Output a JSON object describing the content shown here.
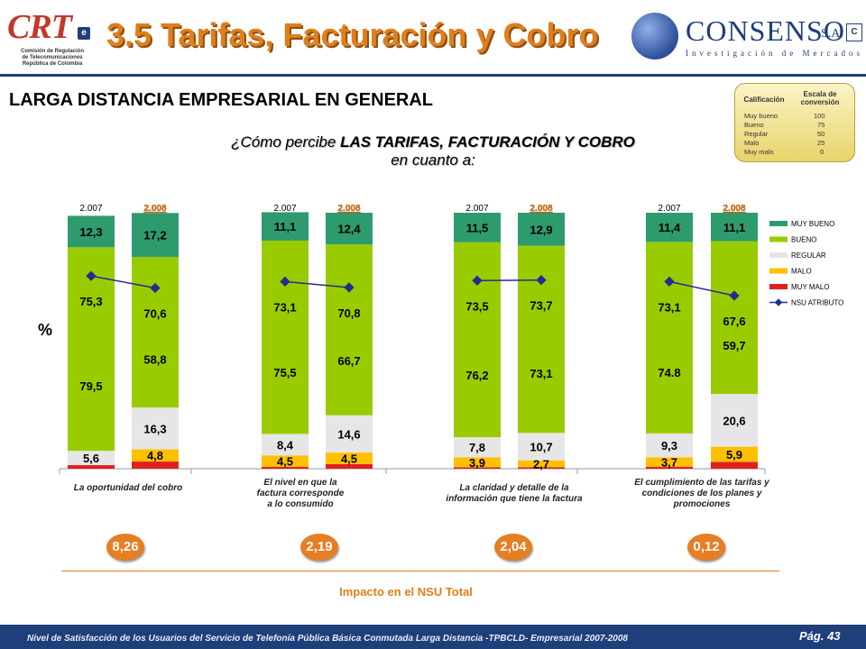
{
  "header": {
    "title": "3.5 Tarifas, Facturación y Cobro",
    "crt_logo": {
      "word": "CRT",
      "badge": "e",
      "lines": [
        "Comisión de Regulación",
        "de Telecomunicaciones",
        "República de Colombia"
      ]
    },
    "consenso_logo": {
      "name": "CONSENSO",
      "suffix": "S.A.",
      "tagline": "Investigación de Mercados",
      "mark": "C"
    }
  },
  "section_title": "LARGA DISTANCIA EMPRESARIAL EN GENERAL",
  "question": {
    "line1_prefix": "¿Cómo percibe ",
    "line1_bold": "LAS TARIFAS, FACTURACIÓN Y COBRO",
    "line2": "en cuanto a:"
  },
  "conversion_table": {
    "headers": [
      "Calificación",
      "Escala de conversión"
    ],
    "rows": [
      [
        "Muy bueno",
        "100"
      ],
      [
        "Bueno",
        "75"
      ],
      [
        "Regular",
        "50"
      ],
      [
        "Malo",
        "25"
      ],
      [
        "Muy malo",
        "0"
      ]
    ]
  },
  "percent_label": "%",
  "colors": {
    "muy_bueno": "#2e9b6e",
    "bueno": "#99cc00",
    "regular": "#e6e6e6",
    "malo": "#ffc000",
    "muy_malo": "#e02020",
    "nsu": "#1f2f8f",
    "accent": "#e07e1b"
  },
  "chart_data": {
    "type": "bar",
    "stacked": true,
    "ylim": [
      0,
      100
    ],
    "legend": {
      "position": "right",
      "labels": [
        "MUY BUENO",
        "BUENO",
        "REGULAR",
        "MALO",
        "MUY MALO",
        "NSU ATRIBUTO"
      ]
    },
    "groups": [
      {
        "category": "La oportunidad del cobro",
        "impact": "8,26",
        "bars": [
          {
            "year": "2.007",
            "muy_malo": 1.4,
            "malo": 0,
            "regular": 5.6,
            "bueno": 79.5,
            "muy_bueno": 12.3,
            "nsu": 75.3,
            "labels": {
              "muy_malo": "",
              "malo": "",
              "regular": "5,6",
              "bueno": "79,5",
              "muy_bueno": "12,3"
            }
          },
          {
            "year": "2.008",
            "muy_malo": 2.8,
            "malo": 4.8,
            "regular": 16.3,
            "bueno": 58.8,
            "muy_bueno": 17.2,
            "nsu": 70.6,
            "labels": {
              "muy_malo": "",
              "malo": "4,8",
              "regular": "16,3",
              "bueno": "58,8",
              "muy_bueno": "17,2"
            }
          }
        ]
      },
      {
        "category": "El nivel en que la factura corresponde a lo consumido",
        "impact": "2,19",
        "bars": [
          {
            "year": "2.007",
            "muy_malo": 0.7,
            "malo": 4.5,
            "regular": 8.4,
            "bueno": 75.5,
            "muy_bueno": 11.1,
            "nsu": 73.1,
            "labels": {
              "muy_malo": "",
              "malo": "4,5",
              "regular": "8,4",
              "bueno": "75,5",
              "muy_bueno": "11,1"
            }
          },
          {
            "year": "2.008",
            "muy_malo": 1.8,
            "malo": 4.5,
            "regular": 14.6,
            "bueno": 66.7,
            "muy_bueno": 12.4,
            "nsu": 70.8,
            "labels": {
              "muy_malo": "",
              "malo": "4,5",
              "regular": "14,6",
              "bueno": "66,7",
              "muy_bueno": "12,4"
            }
          }
        ]
      },
      {
        "category": "La claridad y detalle de la información que tiene la factura",
        "impact": "2,04",
        "bars": [
          {
            "year": "2.007",
            "muy_malo": 0.6,
            "malo": 3.9,
            "regular": 7.8,
            "bueno": 76.2,
            "muy_bueno": 11.5,
            "nsu": 73.5,
            "labels": {
              "muy_malo": "",
              "malo": "3,9",
              "regular": "7,8",
              "bueno": "76,2",
              "muy_bueno": "11,5"
            }
          },
          {
            "year": "2.008",
            "muy_malo": 0.6,
            "malo": 2.7,
            "regular": 10.7,
            "bueno": 73.1,
            "muy_bueno": 12.9,
            "nsu": 73.7,
            "labels": {
              "muy_malo": "",
              "malo": "2,7",
              "regular": "10,7",
              "bueno": "73,1",
              "muy_bueno": "12,9"
            }
          }
        ]
      },
      {
        "category": "El cumplimiento de las tarifas y condiciones de los planes y promociones",
        "impact": "0,12",
        "bars": [
          {
            "year": "2.007",
            "muy_malo": 0.8,
            "malo": 3.7,
            "regular": 9.3,
            "bueno": 74.8,
            "muy_bueno": 11.4,
            "nsu": 73.1,
            "labels": {
              "muy_malo": "",
              "malo": "3,7",
              "regular": "9,3",
              "bueno": "74.8",
              "muy_bueno": "11,4"
            }
          },
          {
            "year": "2.008",
            "muy_malo": 2.7,
            "malo": 5.9,
            "regular": 20.6,
            "bueno": 59.7,
            "muy_bueno": 11.1,
            "nsu": 67.6,
            "labels": {
              "muy_malo": "",
              "malo": "5,9",
              "regular": "20,6",
              "bueno": "59,7",
              "muy_bueno": "11,1"
            }
          }
        ]
      }
    ],
    "impact_title": "Impacto en el NSU Total"
  },
  "footer": {
    "text": "Nivel de Satisfacción de los Usuarios del Servicio de Telefonía Pública Básica Conmutada Larga Distancia -TPBCLD- Empresarial 2007-2008",
    "page": "Pág. 43"
  }
}
